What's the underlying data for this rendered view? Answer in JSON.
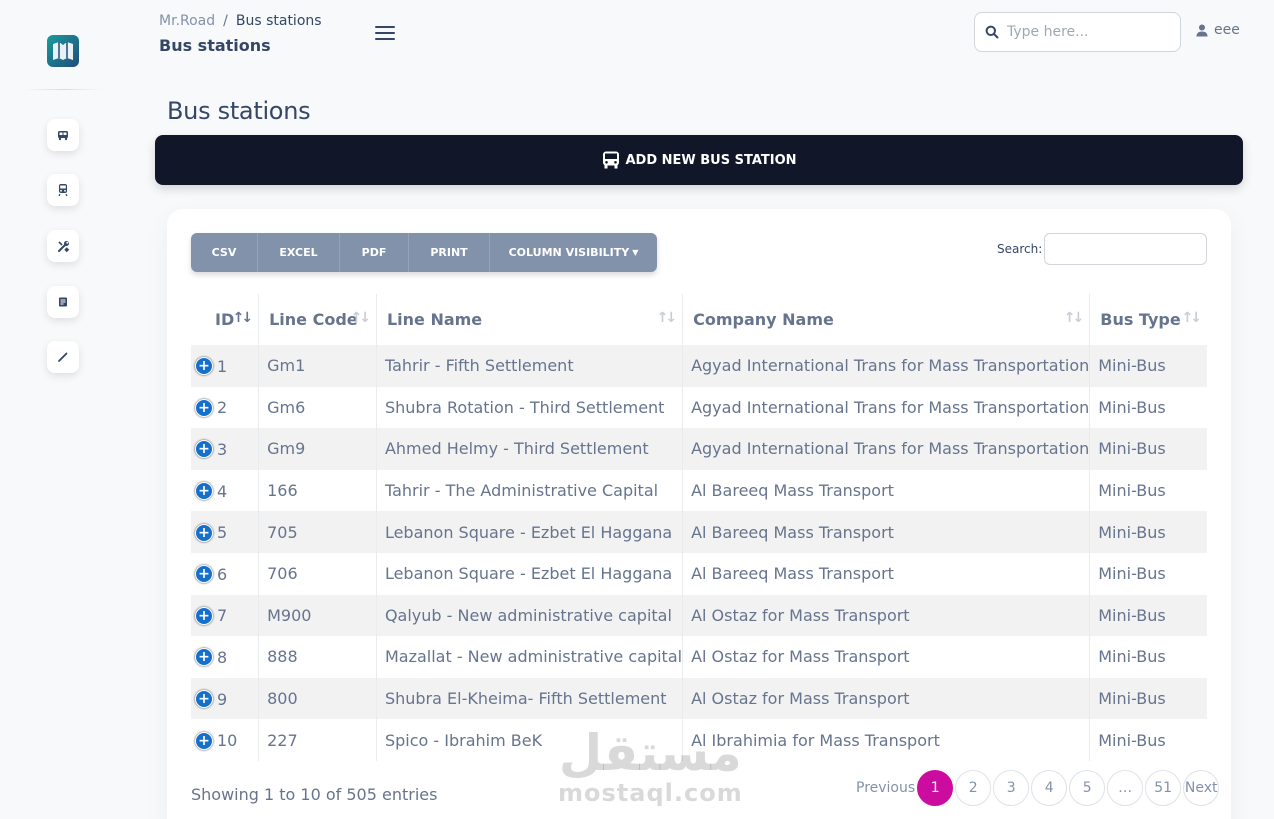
{
  "breadcrumb": {
    "root": "Mr.Road",
    "separator": "/",
    "current": "Bus stations"
  },
  "navbar": {
    "title": "Bus stations",
    "search_placeholder": "Type here...",
    "user_name": "eee"
  },
  "page": {
    "title": "Bus stations"
  },
  "add_button": {
    "label": "ADD NEW BUS STATION"
  },
  "sidebar": {
    "items": [
      {
        "icon": "bus-icon"
      },
      {
        "icon": "train-icon"
      },
      {
        "icon": "tools-icon"
      },
      {
        "icon": "document-icon"
      },
      {
        "icon": "pen-icon"
      }
    ]
  },
  "export_buttons": [
    "CSV",
    "EXCEL",
    "PDF",
    "PRINT",
    "COLUMN VISIBILITY"
  ],
  "table_search": {
    "label": "Search:"
  },
  "table": {
    "columns": [
      "ID",
      "Line Code",
      "Line Name",
      "Company Name",
      "Bus Type"
    ],
    "rows": [
      [
        "1",
        "Gm1",
        "Tahrir - Fifth Settlement",
        "Agyad International Trans for Mass Transportation",
        "Mini-Bus"
      ],
      [
        "2",
        "Gm6",
        "Shubra Rotation - Third Settlement",
        "Agyad International Trans for Mass Transportation",
        "Mini-Bus"
      ],
      [
        "3",
        "Gm9",
        "Ahmed Helmy - Third Settlement",
        "Agyad International Trans for Mass Transportation",
        "Mini-Bus"
      ],
      [
        "4",
        "166",
        "Tahrir - The Administrative Capital",
        "Al Bareeq Mass Transport",
        "Mini-Bus"
      ],
      [
        "5",
        "705",
        "Lebanon Square - Ezbet El Haggana",
        "Al Bareeq Mass Transport",
        "Mini-Bus"
      ],
      [
        "6",
        "706",
        "Lebanon Square - Ezbet El Haggana",
        "Al Bareeq Mass Transport",
        "Mini-Bus"
      ],
      [
        "7",
        "M900",
        "Qalyub - New administrative capital",
        "Al Ostaz for Mass Transport",
        "Mini-Bus"
      ],
      [
        "8",
        "888",
        "Mazallat - New administrative capital",
        "Al Ostaz for Mass Transport",
        "Mini-Bus"
      ],
      [
        "9",
        "800",
        "Shubra El-Kheima- Fifth Settlement",
        "Al Ostaz for Mass Transport",
        "Mini-Bus"
      ],
      [
        "10",
        "227",
        "Spico - Ibrahim BeK",
        "Al Ibrahimia for Mass Transport",
        "Mini-Bus"
      ]
    ]
  },
  "table_info": "Showing 1 to 10 of 505 entries",
  "pagination": {
    "previous": "Previous",
    "pages": [
      "1",
      "2",
      "3",
      "4",
      "5",
      "…",
      "51"
    ],
    "current": "1",
    "next": "Next"
  },
  "watermark": {
    "arabic": "مستقل",
    "latin": "mostaql.com"
  },
  "colors": {
    "primary_dark": "#121629",
    "active_page": "#cb0c9f",
    "expand_button": "#1570cc",
    "export_group": "#8392ab"
  }
}
